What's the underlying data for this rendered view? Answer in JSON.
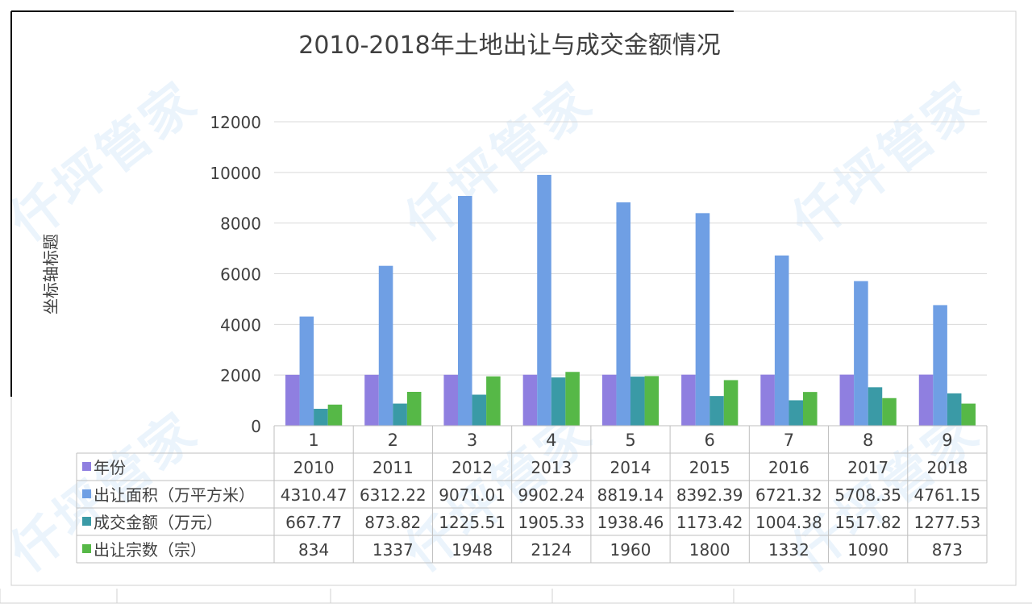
{
  "watermark_text": "仟坪管家",
  "chart_data": {
    "type": "bar",
    "title": "2010-2018年土地出让与成交金额情况",
    "ylabel": "坐标轴标题",
    "xlabel": "",
    "ylim": [
      0,
      12000
    ],
    "yticks": [
      0,
      2000,
      4000,
      6000,
      8000,
      10000,
      12000
    ],
    "categories": [
      "1",
      "2",
      "3",
      "4",
      "5",
      "6",
      "7",
      "8",
      "9"
    ],
    "grid": true,
    "legend": "data-table",
    "series": [
      {
        "name": "年份",
        "color": "#8f7fe0",
        "values": [
          2010,
          2011,
          2012,
          2013,
          2014,
          2015,
          2016,
          2017,
          2018
        ]
      },
      {
        "name": "出让面积（万平方米）",
        "color": "#6f9fe4",
        "values": [
          4310.47,
          6312.22,
          9071.01,
          9902.24,
          8819.14,
          8392.39,
          6721.32,
          5708.35,
          4761.15
        ]
      },
      {
        "name": "成交金额（万元）",
        "color": "#3a9aa6",
        "values": [
          667.77,
          873.82,
          1225.51,
          1905.33,
          1938.46,
          1173.42,
          1004.38,
          1517.82,
          1277.53
        ]
      },
      {
        "name": "出让宗数（宗）",
        "color": "#56b847",
        "values": [
          834,
          1337,
          1948,
          2124,
          1960,
          1800,
          1332,
          1090,
          873
        ]
      }
    ]
  }
}
